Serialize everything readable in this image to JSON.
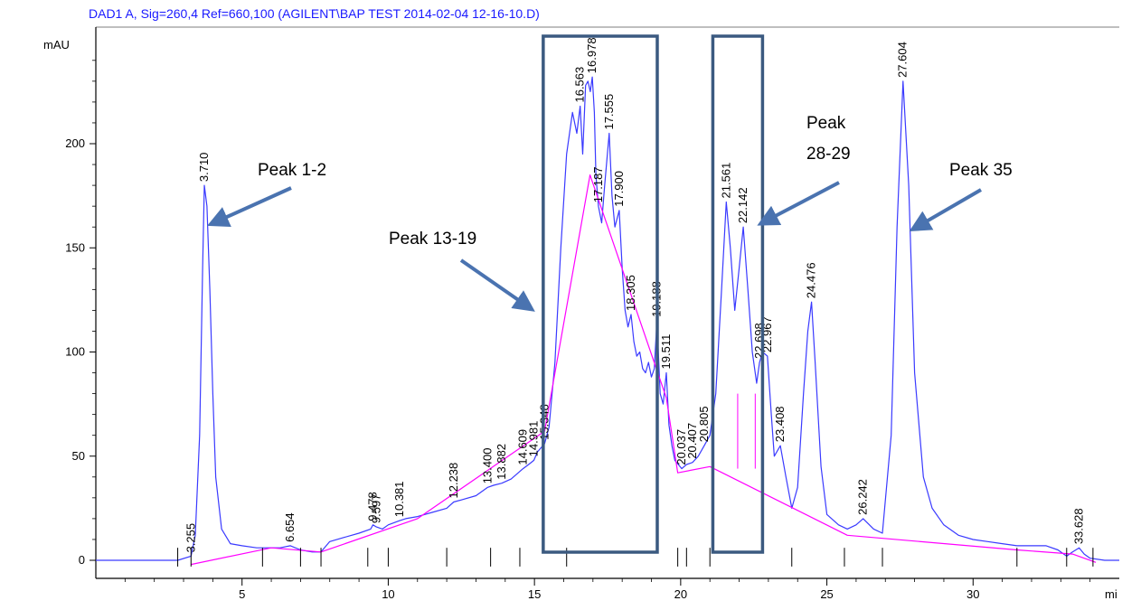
{
  "chart_data": {
    "type": "line",
    "title": "DAD1 A, Sig=260,4 Ref=660,100 (AGILENT\\BAP TEST 2014-02-04 12-16-10.D)",
    "ylabel": "mAU",
    "xlabel": "mi",
    "xlim": [
      0,
      35
    ],
    "ylim": [
      -8,
      250
    ],
    "x_ticks": [
      5,
      10,
      15,
      20,
      25,
      30
    ],
    "y_ticks": [
      0,
      50,
      100,
      150,
      200
    ],
    "series": [
      {
        "color": "#3a3aff",
        "x": [
          0,
          2.8,
          3.255,
          3.4,
          3.55,
          3.65,
          3.71,
          3.8,
          3.9,
          4.0,
          4.1,
          4.3,
          4.6,
          5.0,
          5.5,
          6.0,
          6.3,
          6.654,
          7.0,
          7.4,
          7.7,
          8.0,
          8.5,
          9.0,
          9.4,
          9.478,
          9.597,
          9.8,
          10.0,
          10.381,
          10.6,
          11.0,
          11.5,
          12.0,
          12.238,
          12.5,
          13.0,
          13.4,
          13.6,
          13.882,
          14.2,
          14.609,
          14.8,
          14.981,
          15.1,
          15.348,
          15.5,
          15.7,
          15.9,
          16.1,
          16.3,
          16.45,
          16.563,
          16.65,
          16.75,
          16.83,
          16.91,
          16.978,
          17.05,
          17.1,
          17.187,
          17.3,
          17.4,
          17.555,
          17.65,
          17.75,
          17.9,
          18.0,
          18.1,
          18.2,
          18.305,
          18.4,
          18.5,
          18.6,
          18.7,
          18.8,
          18.9,
          19.0,
          19.1,
          19.188,
          19.3,
          19.4,
          19.511,
          19.6,
          19.7,
          19.8,
          20.037,
          20.2,
          20.407,
          20.6,
          20.805,
          21.0,
          21.2,
          21.4,
          21.561,
          21.7,
          21.85,
          22.0,
          22.142,
          22.3,
          22.45,
          22.6,
          22.698,
          22.8,
          22.967,
          23.1,
          23.2,
          23.408,
          23.6,
          23.8,
          24.0,
          24.2,
          24.35,
          24.476,
          24.6,
          24.8,
          25.0,
          25.4,
          25.7,
          26.0,
          26.242,
          26.6,
          26.9,
          27.2,
          27.4,
          27.604,
          27.8,
          28.0,
          28.3,
          28.6,
          29.0,
          29.5,
          30.0,
          30.5,
          31.0,
          31.5,
          32.0,
          32.5,
          32.9,
          33.2,
          33.4,
          33.628,
          33.8,
          34.0,
          34.5,
          35.0
        ],
        "y": [
          0,
          0,
          2,
          12,
          60,
          140,
          180,
          170,
          130,
          80,
          40,
          15,
          8,
          7,
          6,
          6,
          6,
          7,
          5,
          4,
          4,
          9,
          11,
          13,
          15,
          17,
          16,
          15,
          17,
          19,
          20,
          21,
          23,
          25,
          28,
          29,
          31,
          35,
          36,
          37,
          39,
          44,
          46,
          48,
          52,
          56,
          64,
          95,
          150,
          195,
          215,
          205,
          218,
          195,
          228,
          230,
          225,
          232,
          215,
          185,
          170,
          162,
          180,
          205,
          175,
          160,
          168,
          140,
          120,
          112,
          118,
          105,
          98,
          100,
          92,
          90,
          95,
          88,
          92,
          115,
          80,
          75,
          90,
          65,
          55,
          48,
          44,
          46,
          47,
          50,
          55,
          60,
          80,
          130,
          172,
          150,
          120,
          140,
          160,
          130,
          100,
          85,
          95,
          100,
          98,
          70,
          50,
          55,
          40,
          25,
          35,
          80,
          110,
          124,
          95,
          45,
          22,
          17,
          15,
          17,
          20,
          15,
          13,
          60,
          160,
          230,
          180,
          90,
          40,
          25,
          17,
          12,
          10,
          9,
          8,
          7,
          7,
          7,
          5,
          2,
          4,
          6,
          3,
          1,
          0,
          0
        ]
      },
      {
        "color": "#ff00ff",
        "x": [
          3.255,
          6.0,
          7.7,
          11.0,
          15.348,
          16.9,
          19.511,
          19.9,
          21.0,
          25.7,
          31.5,
          33.4,
          34.2
        ],
        "y": [
          -2,
          6,
          4,
          20,
          62,
          185,
          78,
          42,
          45,
          12,
          5,
          3,
          -1
        ]
      }
    ],
    "peak_labels": [
      {
        "label": "3.255",
        "x": 3.255,
        "y": 2
      },
      {
        "label": "3.710",
        "x": 3.71,
        "y": 180
      },
      {
        "label": "6.654",
        "x": 6.654,
        "y": 7
      },
      {
        "label": "9.478",
        "x": 9.478,
        "y": 17
      },
      {
        "label": "9.597",
        "x": 9.597,
        "y": 16
      },
      {
        "label": "10.381",
        "x": 10.381,
        "y": 19
      },
      {
        "label": "12.238",
        "x": 12.238,
        "y": 28
      },
      {
        "label": "13.400",
        "x": 13.4,
        "y": 35
      },
      {
        "label": "13.882",
        "x": 13.882,
        "y": 37
      },
      {
        "label": "14.609",
        "x": 14.609,
        "y": 44
      },
      {
        "label": "14.981",
        "x": 14.981,
        "y": 48
      },
      {
        "label": "15.348",
        "x": 15.348,
        "y": 56
      },
      {
        "label": "16.563",
        "x": 16.563,
        "y": 218
      },
      {
        "label": "16.978",
        "x": 16.978,
        "y": 232
      },
      {
        "label": "17.187",
        "x": 17.187,
        "y": 170
      },
      {
        "label": "17.555",
        "x": 17.555,
        "y": 205
      },
      {
        "label": "17.900",
        "x": 17.9,
        "y": 168
      },
      {
        "label": "18.305",
        "x": 18.305,
        "y": 118
      },
      {
        "label": "19.188",
        "x": 19.188,
        "y": 115
      },
      {
        "label": "19.511",
        "x": 19.511,
        "y": 90
      },
      {
        "label": "20.037",
        "x": 20.037,
        "y": 44
      },
      {
        "label": "20.407",
        "x": 20.407,
        "y": 47
      },
      {
        "label": "20.805",
        "x": 20.805,
        "y": 55
      },
      {
        "label": "21.561",
        "x": 21.561,
        "y": 172
      },
      {
        "label": "22.142",
        "x": 22.142,
        "y": 160
      },
      {
        "label": "22.698",
        "x": 22.698,
        "y": 95
      },
      {
        "label": "22.967",
        "x": 22.967,
        "y": 98
      },
      {
        "label": "23.408",
        "x": 23.408,
        "y": 55
      },
      {
        "label": "24.476",
        "x": 24.476,
        "y": 124
      },
      {
        "label": "26.242",
        "x": 26.242,
        "y": 20
      },
      {
        "label": "27.604",
        "x": 27.604,
        "y": 230
      },
      {
        "label": "33.628",
        "x": 33.628,
        "y": 6
      }
    ],
    "annotations": [
      {
        "lines": [
          "Peak 1-2"
        ]
      },
      {
        "lines": [
          "Peak 13-19"
        ]
      },
      {
        "lines": [
          "Peak",
          "28-29"
        ]
      },
      {
        "lines": [
          "Peak 35"
        ]
      }
    ],
    "highlight_boxes": [
      {
        "x_from": 15.3,
        "x_to": 19.2
      },
      {
        "x_from": 21.1,
        "x_to": 22.8
      }
    ]
  }
}
